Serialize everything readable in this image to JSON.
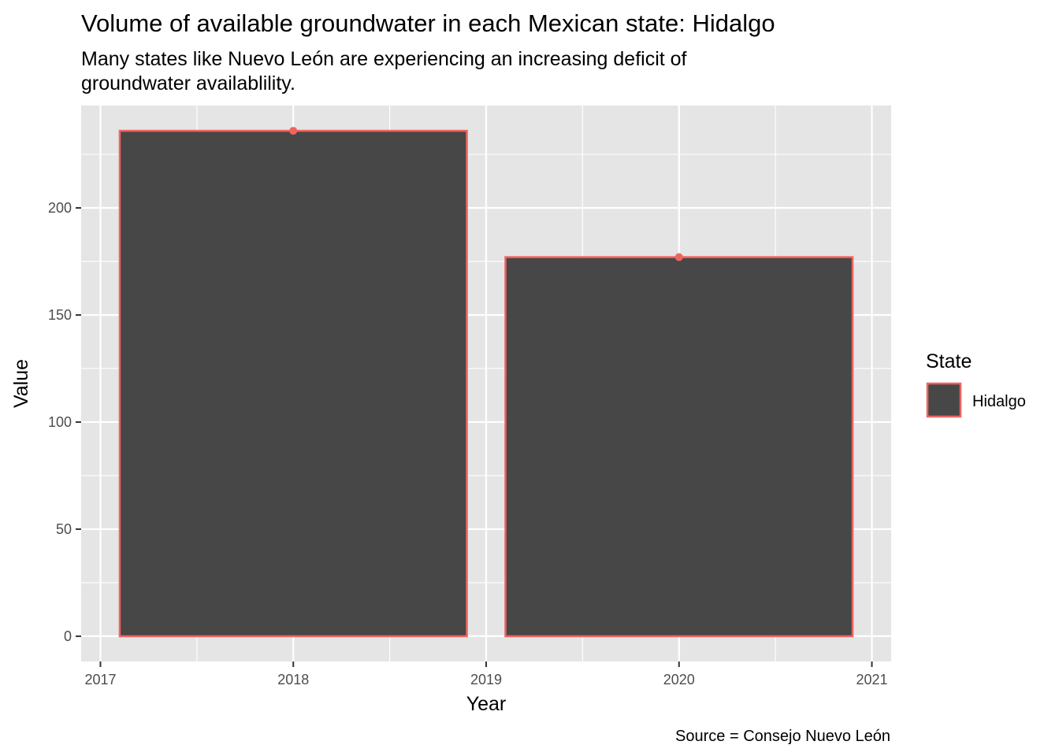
{
  "chart_data": {
    "type": "bar",
    "title": "Volume of available groundwater in each Mexican state: Hidalgo",
    "subtitle_lines": [
      "Many states like Nuevo León are experiencing an increasing deficit of",
      "groundwater availablility."
    ],
    "caption": "Source = Consejo Nuevo León",
    "xlabel": "Year",
    "ylabel": "Value",
    "x": [
      2018,
      2020
    ],
    "series": [
      {
        "name": "Hidalgo",
        "values": [
          236,
          177
        ]
      }
    ],
    "bar_width_years": 1.8,
    "xlim": [
      2016.9,
      2021.1
    ],
    "ylim": [
      -11.8,
      247.8
    ],
    "x_ticks": [
      2017,
      2018,
      2019,
      2020,
      2021
    ],
    "y_ticks": [
      0,
      50,
      100,
      150,
      200
    ],
    "grid": true,
    "show_points": true,
    "legend": {
      "title": "State",
      "position": "right"
    },
    "colors": {
      "bar_fill": "#474747",
      "bar_outline": "#f06460",
      "point": "#f06460",
      "panel_background": "#e5e5e5",
      "grid": "#ffffff"
    }
  }
}
